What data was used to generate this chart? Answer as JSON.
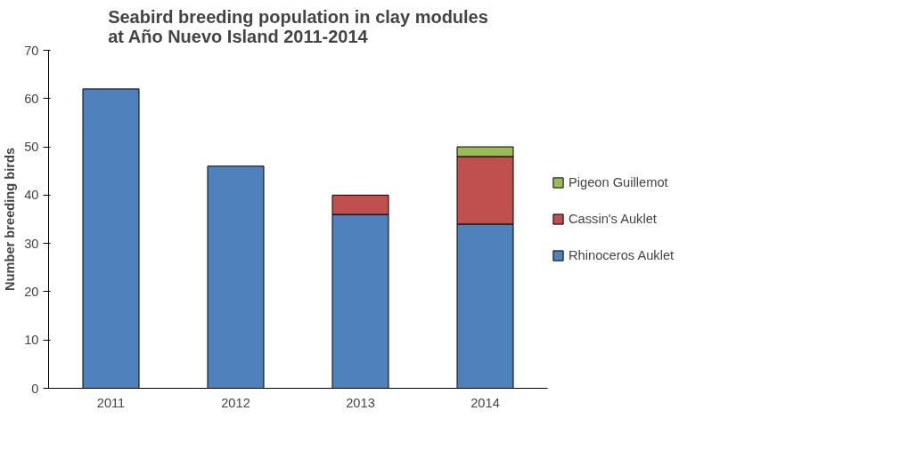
{
  "chart_data": {
    "type": "bar",
    "title": "Seabird breeding population in clay modules\nat Año Nuevo Island 2011-2014",
    "ylabel": "Number breeding birds",
    "categories": [
      "2011",
      "2012",
      "2013",
      "2014"
    ],
    "stacked": true,
    "series": [
      {
        "name": "Rhinoceros Auklet",
        "color": "#4f81bd",
        "values": [
          62,
          46,
          36,
          34
        ]
      },
      {
        "name": "Cassin's Auklet",
        "color": "#c0504d",
        "values": [
          0,
          0,
          4,
          14
        ]
      },
      {
        "name": "Pigeon Guillemot",
        "color": "#9bbb59",
        "values": [
          0,
          0,
          0,
          2
        ]
      }
    ],
    "ylim": [
      0,
      70
    ],
    "yticks": [
      0,
      10,
      20,
      30,
      40,
      50,
      60,
      70
    ],
    "grid": false,
    "legend": "right"
  }
}
